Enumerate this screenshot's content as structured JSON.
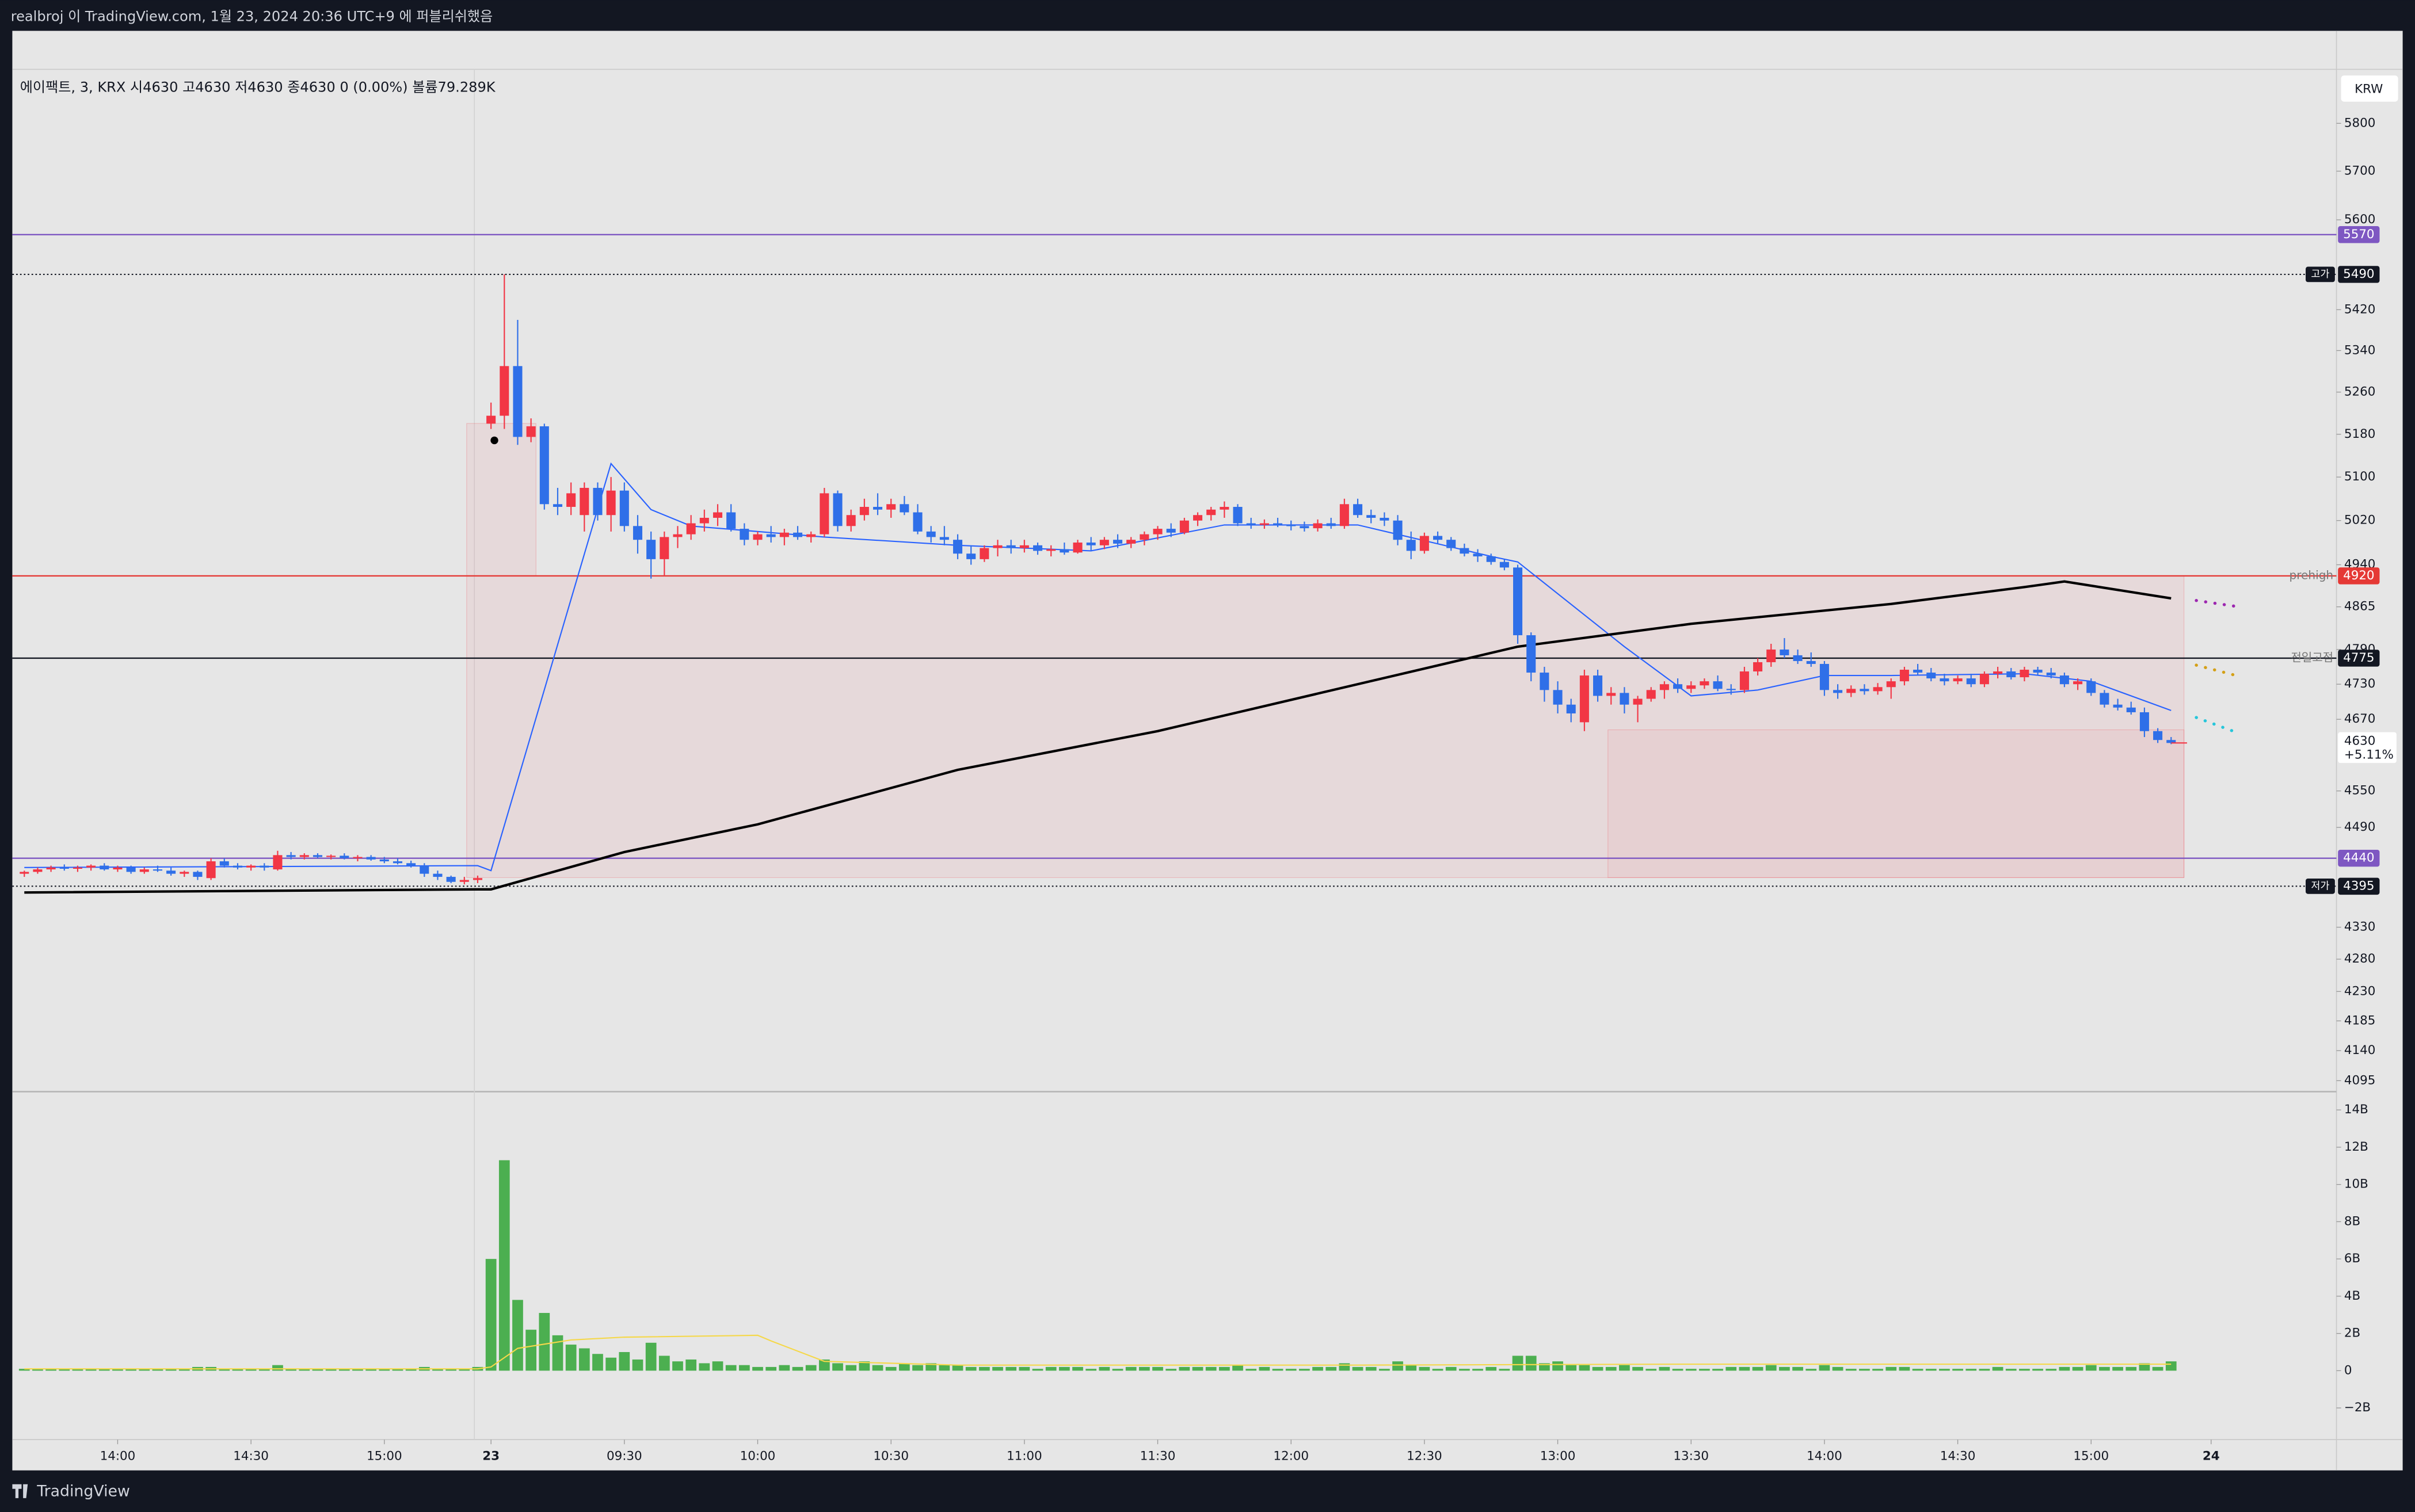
{
  "header": "realbroj 이 TradingView.com, 1월 23, 2024 20:36 UTC+9 에 퍼블리쉬했음",
  "footer": "TradingView",
  "currency": "KRW",
  "chart_data": {
    "type": "candlestick",
    "legend_text": "에이팩트, 3, KRX  시4630  고4630  저4630  종4630  0 (0.00%)  볼륨79.289K",
    "log_scale": true,
    "ylim": [
      4081,
      5915
    ],
    "yticks": [
      5800,
      5700,
      5600,
      5420,
      5340,
      5260,
      5180,
      5100,
      5020,
      4940,
      4865,
      4790,
      4730,
      4670,
      4550,
      4490,
      4330,
      4280,
      4230,
      4185,
      4140,
      4095
    ],
    "xlim": [
      -0.9,
      173.4
    ],
    "xticks": [
      {
        "value": 7,
        "label": "14:00"
      },
      {
        "value": 17,
        "label": "14:30"
      },
      {
        "value": 27,
        "label": "15:00"
      },
      {
        "value": 35,
        "label": "23"
      },
      {
        "value": 45,
        "label": "09:30"
      },
      {
        "value": 55,
        "label": "10:00"
      },
      {
        "value": 65,
        "label": "10:30"
      },
      {
        "value": 75,
        "label": "11:00"
      },
      {
        "value": 85,
        "label": "11:30"
      },
      {
        "value": 95,
        "label": "12:00"
      },
      {
        "value": 105,
        "label": "12:30"
      },
      {
        "value": 115,
        "label": "13:00"
      },
      {
        "value": 125,
        "label": "13:30"
      },
      {
        "value": 135,
        "label": "14:00"
      },
      {
        "value": 145,
        "label": "14:30"
      },
      {
        "value": 155,
        "label": "15:00"
      },
      {
        "value": 164,
        "label": "24"
      }
    ],
    "up_color": "#f23645",
    "down_color": "#2f6fe8",
    "ohlc": [
      [
        4415,
        4420,
        4410,
        4418
      ],
      [
        4418,
        4425,
        4415,
        4422
      ],
      [
        4422,
        4428,
        4418,
        4425
      ],
      [
        4425,
        4430,
        4420,
        4423
      ],
      [
        4423,
        4428,
        4418,
        4425
      ],
      [
        4425,
        4430,
        4420,
        4428
      ],
      [
        4428,
        4432,
        4420,
        4422
      ],
      [
        4422,
        4428,
        4418,
        4425
      ],
      [
        4425,
        4428,
        4415,
        4418
      ],
      [
        4418,
        4425,
        4415,
        4422
      ],
      [
        4422,
        4428,
        4418,
        4420
      ],
      [
        4420,
        4425,
        4412,
        4415
      ],
      [
        4415,
        4420,
        4410,
        4418
      ],
      [
        4418,
        4420,
        4405,
        4410
      ],
      [
        4408,
        4440,
        4405,
        4435
      ],
      [
        4435,
        4440,
        4425,
        4428
      ],
      [
        4428,
        4432,
        4422,
        4425
      ],
      [
        4425,
        4430,
        4420,
        4428
      ],
      [
        4428,
        4432,
        4420,
        4425
      ],
      [
        4422,
        4452,
        4420,
        4445
      ],
      [
        4445,
        4450,
        4438,
        4442
      ],
      [
        4442,
        4448,
        4438,
        4445
      ],
      [
        4445,
        4448,
        4440,
        4442
      ],
      [
        4442,
        4446,
        4438,
        4444
      ],
      [
        4444,
        4448,
        4438,
        4440
      ],
      [
        4440,
        4445,
        4435,
        4442
      ],
      [
        4442,
        4445,
        4436,
        4438
      ],
      [
        4438,
        4442,
        4432,
        4435
      ],
      [
        4435,
        4440,
        4430,
        4432
      ],
      [
        4432,
        4436,
        4425,
        4428
      ],
      [
        4428,
        4432,
        4410,
        4415
      ],
      [
        4415,
        4420,
        4405,
        4410
      ],
      [
        4410,
        4412,
        4400,
        4402
      ],
      [
        4402,
        4410,
        4398,
        4405
      ],
      [
        4405,
        4412,
        4400,
        4408
      ],
      [
        5200,
        5240,
        5190,
        5215
      ],
      [
        5215,
        5490,
        5190,
        5310
      ],
      [
        5310,
        5400,
        5160,
        5175
      ],
      [
        5175,
        5210,
        5165,
        5195
      ],
      [
        5195,
        5200,
        5040,
        5050
      ],
      [
        5050,
        5080,
        5030,
        5045
      ],
      [
        5045,
        5090,
        5030,
        5070
      ],
      [
        5030,
        5090,
        5000,
        5080
      ],
      [
        5080,
        5090,
        5020,
        5030
      ],
      [
        5030,
        5100,
        5000,
        5075
      ],
      [
        5075,
        5090,
        5000,
        5010
      ],
      [
        5010,
        5030,
        4960,
        4985
      ],
      [
        4985,
        5000,
        4915,
        4950
      ],
      [
        4950,
        5000,
        4920,
        4990
      ],
      [
        4990,
        5010,
        4970,
        4995
      ],
      [
        4995,
        5030,
        4985,
        5015
      ],
      [
        5015,
        5040,
        5000,
        5025
      ],
      [
        5025,
        5050,
        5010,
        5035
      ],
      [
        5035,
        5050,
        5000,
        5005
      ],
      [
        5005,
        5015,
        4975,
        4985
      ],
      [
        4985,
        5000,
        4975,
        4995
      ],
      [
        4995,
        5010,
        4980,
        4990
      ],
      [
        4990,
        5005,
        4975,
        4998
      ],
      [
        4998,
        5010,
        4985,
        4990
      ],
      [
        4990,
        5000,
        4980,
        4995
      ],
      [
        4995,
        5080,
        4990,
        5070
      ],
      [
        5070,
        5075,
        5000,
        5010
      ],
      [
        5010,
        5040,
        5000,
        5030
      ],
      [
        5030,
        5060,
        5020,
        5045
      ],
      [
        5045,
        5070,
        5030,
        5040
      ],
      [
        5040,
        5060,
        5025,
        5050
      ],
      [
        5050,
        5065,
        5030,
        5035
      ],
      [
        5035,
        5050,
        4995,
        5000
      ],
      [
        5000,
        5010,
        4980,
        4990
      ],
      [
        4990,
        5010,
        4975,
        4985
      ],
      [
        4985,
        4995,
        4950,
        4960
      ],
      [
        4960,
        4975,
        4940,
        4950
      ],
      [
        4950,
        4975,
        4945,
        4970
      ],
      [
        4970,
        4985,
        4955,
        4975
      ],
      [
        4975,
        4985,
        4960,
        4970
      ],
      [
        4970,
        4985,
        4962,
        4975
      ],
      [
        4975,
        4980,
        4958,
        4965
      ],
      [
        4965,
        4975,
        4955,
        4968
      ],
      [
        4968,
        4980,
        4958,
        4962
      ],
      [
        4962,
        4985,
        4960,
        4980
      ],
      [
        4980,
        4990,
        4965,
        4975
      ],
      [
        4975,
        4990,
        4968,
        4985
      ],
      [
        4985,
        4995,
        4970,
        4978
      ],
      [
        4978,
        4990,
        4970,
        4985
      ],
      [
        4985,
        5000,
        4975,
        4995
      ],
      [
        4995,
        5010,
        4985,
        5005
      ],
      [
        5005,
        5015,
        4990,
        4998
      ],
      [
        4998,
        5025,
        4995,
        5020
      ],
      [
        5020,
        5035,
        5010,
        5030
      ],
      [
        5030,
        5045,
        5020,
        5040
      ],
      [
        5040,
        5055,
        5025,
        5045
      ],
      [
        5045,
        5050,
        5010,
        5015
      ],
      [
        5015,
        5025,
        5005,
        5012
      ],
      [
        5012,
        5022,
        5005,
        5015
      ],
      [
        5015,
        5025,
        5008,
        5012
      ],
      [
        5012,
        5020,
        5002,
        5010
      ],
      [
        5010,
        5018,
        5000,
        5006
      ],
      [
        5006,
        5022,
        5000,
        5015
      ],
      [
        5015,
        5025,
        5005,
        5010
      ],
      [
        5010,
        5060,
        5005,
        5050
      ],
      [
        5050,
        5060,
        5025,
        5030
      ],
      [
        5030,
        5040,
        5015,
        5025
      ],
      [
        5025,
        5035,
        5010,
        5020
      ],
      [
        5020,
        5030,
        4975,
        4985
      ],
      [
        4985,
        5000,
        4950,
        4965
      ],
      [
        4965,
        4998,
        4960,
        4992
      ],
      [
        4992,
        5000,
        4978,
        4985
      ],
      [
        4985,
        4990,
        4965,
        4970
      ],
      [
        4970,
        4978,
        4955,
        4960
      ],
      [
        4960,
        4968,
        4945,
        4955
      ],
      [
        4955,
        4960,
        4940,
        4945
      ],
      [
        4945,
        4950,
        4930,
        4935
      ],
      [
        4935,
        4940,
        4800,
        4815
      ],
      [
        4815,
        4820,
        4735,
        4750
      ],
      [
        4750,
        4760,
        4700,
        4720
      ],
      [
        4720,
        4735,
        4680,
        4695
      ],
      [
        4695,
        4705,
        4665,
        4680
      ],
      [
        4665,
        4755,
        4650,
        4745
      ],
      [
        4745,
        4755,
        4700,
        4710
      ],
      [
        4710,
        4725,
        4695,
        4715
      ],
      [
        4715,
        4725,
        4680,
        4695
      ],
      [
        4695,
        4710,
        4665,
        4705
      ],
      [
        4705,
        4725,
        4700,
        4720
      ],
      [
        4720,
        4735,
        4705,
        4730
      ],
      [
        4730,
        4740,
        4715,
        4722
      ],
      [
        4722,
        4735,
        4715,
        4728
      ],
      [
        4728,
        4740,
        4722,
        4735
      ],
      [
        4735,
        4745,
        4718,
        4722
      ],
      [
        4722,
        4730,
        4712,
        4720
      ],
      [
        4720,
        4760,
        4715,
        4752
      ],
      [
        4752,
        4775,
        4745,
        4768
      ],
      [
        4768,
        4800,
        4760,
        4790
      ],
      [
        4790,
        4810,
        4775,
        4780
      ],
      [
        4780,
        4790,
        4765,
        4770
      ],
      [
        4770,
        4785,
        4760,
        4765
      ],
      [
        4765,
        4770,
        4710,
        4720
      ],
      [
        4720,
        4730,
        4705,
        4715
      ],
      [
        4715,
        4728,
        4708,
        4722
      ],
      [
        4722,
        4730,
        4712,
        4718
      ],
      [
        4718,
        4732,
        4712,
        4725
      ],
      [
        4725,
        4740,
        4705,
        4735
      ],
      [
        4735,
        4760,
        4728,
        4755
      ],
      [
        4755,
        4765,
        4745,
        4750
      ],
      [
        4750,
        4758,
        4735,
        4740
      ],
      [
        4740,
        4748,
        4728,
        4735
      ],
      [
        4735,
        4745,
        4730,
        4740
      ],
      [
        4740,
        4748,
        4725,
        4730
      ],
      [
        4730,
        4752,
        4725,
        4748
      ],
      [
        4748,
        4760,
        4740,
        4752
      ],
      [
        4752,
        4758,
        4738,
        4742
      ],
      [
        4742,
        4760,
        4735,
        4755
      ],
      [
        4755,
        4760,
        4745,
        4750
      ],
      [
        4750,
        4758,
        4740,
        4745
      ],
      [
        4745,
        4750,
        4725,
        4730
      ],
      [
        4730,
        4740,
        4720,
        4735
      ],
      [
        4735,
        4740,
        4710,
        4715
      ],
      [
        4715,
        4720,
        4690,
        4695
      ],
      [
        4695,
        4705,
        4685,
        4690
      ],
      [
        4690,
        4700,
        4678,
        4682
      ],
      [
        4682,
        4690,
        4640,
        4650
      ],
      [
        4650,
        4655,
        4630,
        4635
      ],
      [
        4635,
        4640,
        4628,
        4630
      ]
    ],
    "overlays": [
      {
        "color": "#2962ff",
        "width": 0.8,
        "x": [
          0,
          34,
          35,
          44,
          47,
          50,
          60,
          70,
          80,
          90,
          100,
          110,
          112,
          120,
          125,
          130,
          135,
          140,
          150,
          155,
          161
        ],
        "values": [
          4425,
          4428,
          4420,
          5125,
          5040,
          5010,
          4990,
          4975,
          4965,
          5012,
          5012,
          4955,
          4945,
          4795,
          4710,
          4720,
          4745,
          4745,
          4748,
          4735,
          4685
        ]
      },
      {
        "color": "#000000",
        "width": 1.6,
        "x": [
          0,
          34,
          35,
          45,
          55,
          70,
          85,
          100,
          112,
          125,
          140,
          150,
          153,
          161
        ],
        "values": [
          4385,
          4390,
          4390,
          4450,
          4495,
          4585,
          4650,
          4730,
          4795,
          4835,
          4870,
          4900,
          4910,
          4880
        ]
      }
    ],
    "levels": [
      {
        "value": 5570,
        "color": "#7e57c2",
        "style": "solid"
      },
      {
        "value": 5490,
        "color": "#131722",
        "style": "dotted",
        "name": "고가",
        "name_boxed": true
      },
      {
        "value": 4920,
        "color": "#e53935",
        "style": "solid",
        "name": "prehigh",
        "name_boxed": false
      },
      {
        "value": 4775,
        "color": "#131722",
        "style": "solid",
        "name": "전일고점",
        "name_boxed": false
      },
      {
        "value": 4440,
        "color": "#7e57c2",
        "style": "solid"
      },
      {
        "value": 4395,
        "color": "#131722",
        "style": "dotted",
        "name": "저가",
        "name_boxed": true
      }
    ],
    "last": {
      "value": 4630,
      "change": {
        "value": 5.11,
        "label": "+5.11%"
      }
    },
    "volume": {
      "color": "#4caf50",
      "ylim": [
        -3.7,
        14.9
      ],
      "yticks": [
        {
          "value": 14,
          "label": "14B"
        },
        {
          "value": 12,
          "label": "12B"
        },
        {
          "value": 10,
          "label": "10B"
        },
        {
          "value": 8,
          "label": "8B"
        },
        {
          "value": 6,
          "label": "6B"
        },
        {
          "value": 4,
          "label": "4B"
        },
        {
          "value": 2,
          "label": "2B"
        },
        0,
        {
          "value": -2,
          "label": "−2B"
        }
      ],
      "values": [
        0.1,
        0.1,
        0.1,
        0.1,
        0.1,
        0.1,
        0.1,
        0.1,
        0.1,
        0.1,
        0.1,
        0.1,
        0.1,
        0.2,
        0.2,
        0.1,
        0.1,
        0.1,
        0.1,
        0.3,
        0.1,
        0.1,
        0.1,
        0.1,
        0.1,
        0.1,
        0.1,
        0.1,
        0.1,
        0.1,
        0.2,
        0.1,
        0.1,
        0.1,
        0.2,
        6.0,
        11.3,
        3.8,
        2.2,
        3.1,
        1.9,
        1.4,
        1.2,
        0.9,
        0.7,
        1.0,
        0.6,
        1.5,
        0.8,
        0.5,
        0.6,
        0.4,
        0.5,
        0.3,
        0.3,
        0.2,
        0.2,
        0.3,
        0.2,
        0.3,
        0.6,
        0.4,
        0.3,
        0.5,
        0.3,
        0.2,
        0.4,
        0.3,
        0.4,
        0.3,
        0.3,
        0.2,
        0.2,
        0.2,
        0.2,
        0.2,
        0.1,
        0.2,
        0.2,
        0.2,
        0.1,
        0.2,
        0.1,
        0.2,
        0.2,
        0.2,
        0.1,
        0.2,
        0.2,
        0.2,
        0.2,
        0.3,
        0.1,
        0.2,
        0.1,
        0.1,
        0.1,
        0.2,
        0.2,
        0.4,
        0.2,
        0.2,
        0.1,
        0.5,
        0.3,
        0.2,
        0.1,
        0.2,
        0.1,
        0.1,
        0.2,
        0.1,
        0.8,
        0.8,
        0.4,
        0.5,
        0.3,
        0.3,
        0.2,
        0.2,
        0.3,
        0.2,
        0.1,
        0.2,
        0.1,
        0.1,
        0.1,
        0.1,
        0.2,
        0.2,
        0.2,
        0.3,
        0.2,
        0.2,
        0.1,
        0.3,
        0.2,
        0.1,
        0.1,
        0.1,
        0.2,
        0.2,
        0.1,
        0.1,
        0.1,
        0.1,
        0.1,
        0.1,
        0.2,
        0.1,
        0.1,
        0.1,
        0.1,
        0.2,
        0.2,
        0.3,
        0.2,
        0.2,
        0.2,
        0.4,
        0.2,
        0.5
      ],
      "ma": {
        "color": "#f5d84a",
        "x": [
          0,
          34,
          35,
          37,
          41,
          45,
          55,
          56,
          60,
          70,
          100,
          125,
          150,
          161
        ],
        "values": [
          0.1,
          0.1,
          0.2,
          1.2,
          1.65,
          1.8,
          1.9,
          1.6,
          0.5,
          0.3,
          0.3,
          0.35,
          0.35,
          0.35
        ]
      }
    }
  }
}
